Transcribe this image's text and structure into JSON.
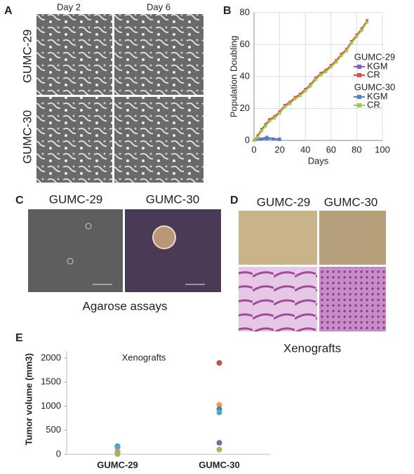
{
  "panels": {
    "A": {
      "letter": "A",
      "columns": [
        "Day 2",
        "Day 6"
      ],
      "rows": [
        "GUMC-29",
        "GUMC-30"
      ]
    },
    "B": {
      "letter": "B"
    },
    "C": {
      "letter": "C",
      "labels": [
        "GUMC-29",
        "GUMC-30"
      ],
      "caption": "Agarose assays"
    },
    "D": {
      "letter": "D",
      "labels": [
        "GUMC-29",
        "GUMC-30"
      ],
      "caption": "Xenografts"
    },
    "E": {
      "letter": "E"
    }
  },
  "chart_data": [
    {
      "type": "line",
      "xlabel": "Days",
      "ylabel": "Population Doubling",
      "xlim": [
        0,
        100
      ],
      "xticks": [
        0,
        20,
        40,
        60,
        80,
        100
      ],
      "ylim": [
        0,
        80
      ],
      "yticks": [
        0,
        20,
        40,
        60,
        80
      ],
      "grid": true,
      "legend": "right",
      "series": [
        {
          "group": "GUMC-29",
          "name": "KGM",
          "color": "#7f5fbf",
          "x": [
            0,
            5,
            10,
            15,
            20
          ],
          "values": [
            0,
            1,
            2,
            1,
            0.5
          ]
        },
        {
          "name": "CR",
          "color": "#e04b4b",
          "x": [
            0,
            3,
            6,
            9,
            12,
            16,
            20,
            24,
            28,
            32,
            36,
            40,
            44,
            48,
            52,
            56,
            60,
            64,
            68,
            72,
            76,
            80,
            84,
            88
          ],
          "values": [
            0,
            3,
            7,
            10,
            13,
            15,
            18,
            22,
            24,
            27,
            29,
            32,
            35,
            39,
            42,
            44,
            47,
            50,
            54,
            57,
            62,
            66,
            70,
            75
          ]
        },
        {
          "group": "GUMC-30",
          "name": "KGM",
          "color": "#4a86c8",
          "x": [
            0,
            10,
            20
          ],
          "values": [
            0,
            1,
            1
          ]
        },
        {
          "name": "CR",
          "color": "#9acd4a",
          "x": [
            0,
            3,
            6,
            9,
            12,
            16,
            20,
            24,
            28,
            32,
            36,
            40,
            44,
            48,
            52,
            56,
            60,
            64,
            68,
            72,
            76,
            80,
            84,
            88
          ],
          "values": [
            0,
            2,
            6,
            9,
            12,
            14,
            17,
            21,
            23,
            26,
            28,
            31,
            34,
            38,
            41,
            43,
            46,
            49,
            53,
            56,
            61,
            65,
            69,
            74
          ]
        }
      ]
    },
    {
      "type": "scatter",
      "title": "Xenografts",
      "ylabel": "Tumor volume (mm3)",
      "categories": [
        "GUMC-29",
        "GUMC-30"
      ],
      "ylim": [
        0,
        2000
      ],
      "yticks": [
        0,
        500,
        1000,
        1500,
        2000
      ],
      "series": [
        {
          "color": "#c0504d",
          "values": [
            20,
            1900
          ]
        },
        {
          "color": "#f79646",
          "values": [
            60,
            1030
          ]
        },
        {
          "color": "#4f81bd",
          "values": [
            170,
            940
          ]
        },
        {
          "color": "#4bacc6",
          "values": [
            150,
            870
          ]
        },
        {
          "color": "#8064a2",
          "values": [
            10,
            240
          ]
        },
        {
          "color": "#9bbb59",
          "values": [
            5,
            100
          ]
        }
      ]
    }
  ]
}
